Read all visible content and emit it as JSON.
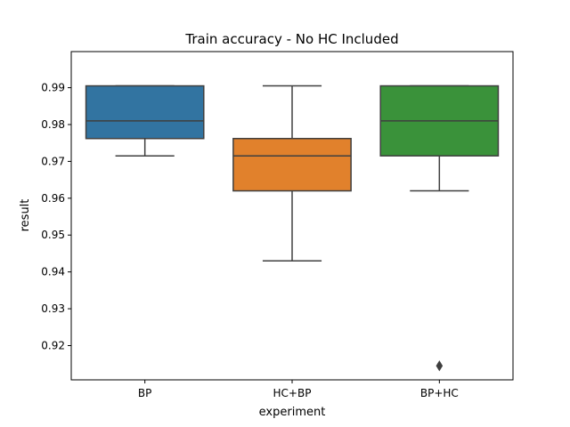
{
  "chart_data": {
    "type": "box",
    "title": "Train accuracy - No HC Included",
    "xlabel": "experiment",
    "ylabel": "result",
    "ylim": [
      0.9107,
      0.9998
    ],
    "yticks": [
      0.92,
      0.93,
      0.94,
      0.95,
      0.96,
      0.97,
      0.98,
      0.99
    ],
    "ytick_labels": [
      "0.92",
      "0.93",
      "0.94",
      "0.95",
      "0.96",
      "0.97",
      "0.98",
      "0.99"
    ],
    "categories": [
      "BP",
      "HC+BP",
      "BP+HC"
    ],
    "series": [
      {
        "category": "BP",
        "color": "#3274a1",
        "whisker_low": 0.9715,
        "q1": 0.9762,
        "median": 0.981,
        "q3": 0.9905,
        "whisker_high": 0.9905,
        "outliers": []
      },
      {
        "category": "HC+BP",
        "color": "#e1812c",
        "whisker_low": 0.943,
        "q1": 0.962,
        "median": 0.9715,
        "q3": 0.9762,
        "whisker_high": 0.9905,
        "outliers": []
      },
      {
        "category": "BP+HC",
        "color": "#3a923a",
        "whisker_low": 0.962,
        "q1": 0.9715,
        "median": 0.981,
        "q3": 0.9905,
        "whisker_high": 0.9905,
        "outliers": [
          0.9145
        ]
      }
    ],
    "grid": false,
    "legend": "none"
  }
}
